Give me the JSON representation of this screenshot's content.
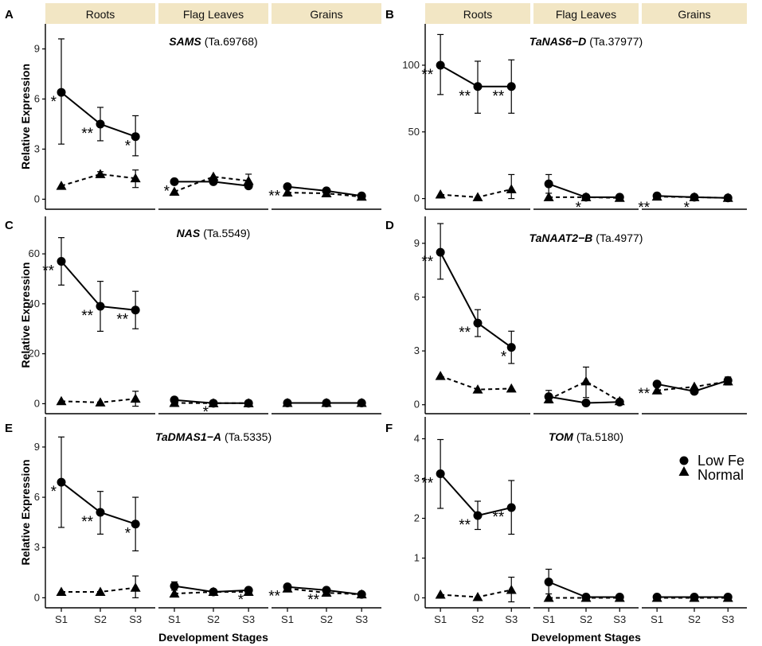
{
  "figure": {
    "strips": [
      "Roots",
      "Flag Leaves",
      "Grains"
    ],
    "stages": [
      "S1",
      "S2",
      "S3"
    ],
    "x_axis_title": "Development Stages",
    "y_axis_title": "Relative Expression",
    "legend": {
      "low_fe": "Low Fe",
      "normal": "Normal"
    },
    "colors": {
      "strip_fill": "#f2e6c4",
      "line": "#000000",
      "background": "#ffffff"
    }
  },
  "chart_data": [
    {
      "letter": "A",
      "type": "line",
      "title_gene": "SAMS",
      "title_id": "(Ta.69768)",
      "ylim": [
        -0.6,
        10.5
      ],
      "yticks": [
        0,
        3,
        6,
        9
      ],
      "facets": [
        {
          "facet": "Roots",
          "low_fe": {
            "values": [
              6.4,
              4.5,
              3.75
            ],
            "err_low": [
              3.3,
              3.5,
              2.6
            ],
            "err_high": [
              9.6,
              5.5,
              5.0
            ]
          },
          "normal": {
            "values": [
              0.8,
              1.5,
              1.25
            ],
            "err_low": [
              0.8,
              1.35,
              0.7
            ],
            "err_high": [
              0.8,
              1.65,
              1.75
            ]
          },
          "stars": [
            "*",
            "**",
            "*"
          ]
        },
        {
          "facet": "Flag Leaves",
          "low_fe": {
            "values": [
              1.05,
              1.05,
              0.8
            ],
            "err_low": [
              1.05,
              1.05,
              0.8
            ],
            "err_high": [
              1.05,
              1.05,
              0.8
            ]
          },
          "normal": {
            "values": [
              0.45,
              1.35,
              1.1
            ],
            "err_low": [
              0.45,
              1.35,
              0.7
            ],
            "err_high": [
              0.45,
              1.35,
              1.5
            ]
          },
          "stars": [
            "*",
            "",
            ""
          ]
        },
        {
          "facet": "Grains",
          "low_fe": {
            "values": [
              0.75,
              0.5,
              0.2
            ],
            "err_low": [
              0.75,
              0.5,
              0.2
            ],
            "err_high": [
              0.75,
              0.5,
              0.2
            ]
          },
          "normal": {
            "values": [
              0.4,
              0.35,
              0.15
            ],
            "err_low": [
              0.4,
              0.35,
              0.15
            ],
            "err_high": [
              0.4,
              0.35,
              0.15
            ]
          },
          "stars": [
            "**",
            "",
            ""
          ]
        }
      ]
    },
    {
      "letter": "B",
      "type": "line",
      "title_gene": "TaNAS6−D",
      "title_id": "(Ta.37977)",
      "ylim": [
        -8,
        131
      ],
      "yticks": [
        0,
        50,
        100
      ],
      "facets": [
        {
          "facet": "Roots",
          "low_fe": {
            "values": [
              100,
              84,
              84
            ],
            "err_low": [
              78,
              64,
              64
            ],
            "err_high": [
              123,
              103,
              104
            ]
          },
          "normal": {
            "values": [
              3,
              1,
              7
            ],
            "err_low": [
              3,
              1,
              0
            ],
            "err_high": [
              3,
              1,
              18
            ]
          },
          "stars": [
            "**",
            "**",
            "**"
          ]
        },
        {
          "facet": "Flag Leaves",
          "low_fe": {
            "values": [
              11,
              1,
              1
            ],
            "err_low": [
              4,
              1,
              1
            ],
            "err_high": [
              18,
              1,
              1
            ]
          },
          "normal": {
            "values": [
              1,
              1,
              0.5
            ],
            "err_low": [
              1,
              1,
              0.5
            ],
            "err_high": [
              1,
              1,
              0.5
            ]
          },
          "stars": [
            "",
            "*",
            ""
          ]
        },
        {
          "facet": "Grains",
          "low_fe": {
            "values": [
              2,
              1,
              0.5
            ],
            "err_low": [
              2,
              1,
              0.5
            ],
            "err_high": [
              2,
              1,
              0.5
            ]
          },
          "normal": {
            "values": [
              1.5,
              1,
              0.5
            ],
            "err_low": [
              1.5,
              1,
              0.5
            ],
            "err_high": [
              1.5,
              1,
              0.5
            ]
          },
          "stars": [
            "**",
            "*",
            ""
          ]
        }
      ]
    },
    {
      "letter": "C",
      "type": "line",
      "title_gene": "NAS",
      "title_id": "(Ta.5549)",
      "ylim": [
        -4,
        75
      ],
      "yticks": [
        0,
        20,
        40,
        60
      ],
      "facets": [
        {
          "facet": "Roots",
          "low_fe": {
            "values": [
              57,
              39,
              37.5
            ],
            "err_low": [
              47.5,
              29,
              30
            ],
            "err_high": [
              66.5,
              49,
              45
            ]
          },
          "normal": {
            "values": [
              1,
              0.5,
              2
            ],
            "err_low": [
              1,
              0.5,
              -1
            ],
            "err_high": [
              1,
              0.5,
              5
            ]
          },
          "stars": [
            "**",
            "**",
            "**"
          ]
        },
        {
          "facet": "Flag Leaves",
          "low_fe": {
            "values": [
              1.5,
              0.2,
              0.2
            ],
            "err_low": [
              1.5,
              0.2,
              0.2
            ],
            "err_high": [
              1.5,
              0.2,
              0.2
            ]
          },
          "normal": {
            "values": [
              0.3,
              0.2,
              0.2
            ],
            "err_low": [
              0.3,
              0.2,
              0.2
            ],
            "err_high": [
              0.3,
              0.2,
              0.2
            ]
          },
          "stars": [
            "",
            "*",
            ""
          ]
        },
        {
          "facet": "Grains",
          "low_fe": {
            "values": [
              0.3,
              0.3,
              0.3
            ],
            "err_low": [
              0.3,
              0.3,
              0.3
            ],
            "err_high": [
              0.3,
              0.3,
              0.3
            ]
          },
          "normal": {
            "values": [
              0.3,
              0.3,
              0.3
            ],
            "err_low": [
              0.3,
              0.3,
              0.3
            ],
            "err_high": [
              0.3,
              0.3,
              0.3
            ]
          },
          "stars": [
            "",
            "",
            ""
          ]
        }
      ]
    },
    {
      "letter": "D",
      "type": "line",
      "title_gene": "TaNAAT2−B",
      "title_id": "(Ta.4977)",
      "ylim": [
        -0.5,
        10.5
      ],
      "yticks": [
        0,
        3,
        6,
        9
      ],
      "facets": [
        {
          "facet": "Roots",
          "low_fe": {
            "values": [
              8.5,
              4.55,
              3.2
            ],
            "err_low": [
              7.0,
              3.8,
              2.3
            ],
            "err_high": [
              10.1,
              5.3,
              4.1
            ]
          },
          "normal": {
            "values": [
              1.6,
              0.85,
              0.9
            ],
            "err_low": [
              1.6,
              0.85,
              0.9
            ],
            "err_high": [
              1.6,
              0.85,
              0.9
            ]
          },
          "stars": [
            "**",
            "**",
            "*"
          ]
        },
        {
          "facet": "Flag Leaves",
          "low_fe": {
            "values": [
              0.45,
              0.1,
              0.15
            ],
            "err_low": [
              0.1,
              0.1,
              0.15
            ],
            "err_high": [
              0.8,
              0.1,
              0.15
            ]
          },
          "normal": {
            "values": [
              0.3,
              1.3,
              0.2
            ],
            "err_low": [
              0.3,
              0.4,
              0.2
            ],
            "err_high": [
              0.3,
              2.1,
              0.2
            ]
          },
          "stars": [
            "",
            "",
            ""
          ]
        },
        {
          "facet": "Grains",
          "low_fe": {
            "values": [
              1.15,
              0.75,
              1.35
            ],
            "err_low": [
              1.15,
              0.75,
              1.15
            ],
            "err_high": [
              1.15,
              0.75,
              1.55
            ]
          },
          "normal": {
            "values": [
              0.8,
              1.0,
              1.3
            ],
            "err_low": [
              0.8,
              1.0,
              1.1
            ],
            "err_high": [
              0.8,
              1.0,
              1.5
            ]
          },
          "stars": [
            "**",
            "",
            ""
          ]
        }
      ]
    },
    {
      "letter": "E",
      "type": "line",
      "title_gene": "TaDMAS1−A",
      "title_id": "(Ta.5335)",
      "ylim": [
        -0.6,
        10.8
      ],
      "yticks": [
        0,
        3,
        6,
        9
      ],
      "facets": [
        {
          "facet": "Roots",
          "low_fe": {
            "values": [
              6.9,
              5.1,
              4.4
            ],
            "err_low": [
              4.2,
              3.8,
              2.8
            ],
            "err_high": [
              9.6,
              6.35,
              6.0
            ]
          },
          "normal": {
            "values": [
              0.35,
              0.35,
              0.6
            ],
            "err_low": [
              0.35,
              0.35,
              0.0
            ],
            "err_high": [
              0.35,
              0.35,
              1.3
            ]
          },
          "stars": [
            "*",
            "**",
            "*"
          ]
        },
        {
          "facet": "Flag Leaves",
          "low_fe": {
            "values": [
              0.7,
              0.35,
              0.45
            ],
            "err_low": [
              0.45,
              0.35,
              0.45
            ],
            "err_high": [
              0.95,
              0.35,
              0.45
            ]
          },
          "normal": {
            "values": [
              0.25,
              0.35,
              0.35
            ],
            "err_low": [
              0.25,
              0.35,
              0.35
            ],
            "err_high": [
              0.25,
              0.35,
              0.35
            ]
          },
          "stars": [
            "",
            "",
            "*"
          ]
        },
        {
          "facet": "Grains",
          "low_fe": {
            "values": [
              0.65,
              0.45,
              0.2
            ],
            "err_low": [
              0.65,
              0.45,
              0.2
            ],
            "err_high": [
              0.65,
              0.45,
              0.2
            ]
          },
          "normal": {
            "values": [
              0.55,
              0.3,
              0.2
            ],
            "err_low": [
              0.55,
              0.3,
              0.2
            ],
            "err_high": [
              0.55,
              0.3,
              0.2
            ]
          },
          "stars": [
            "**",
            "**",
            ""
          ]
        }
      ]
    },
    {
      "letter": "F",
      "type": "line",
      "title_gene": "TOM",
      "title_id": "(Ta.5180)",
      "ylim": [
        -0.25,
        4.55
      ],
      "yticks": [
        0,
        1,
        2,
        3,
        4
      ],
      "facets": [
        {
          "facet": "Roots",
          "low_fe": {
            "values": [
              3.12,
              2.07,
              2.27
            ],
            "err_low": [
              2.25,
              1.72,
              1.6
            ],
            "err_high": [
              3.98,
              2.43,
              2.95
            ]
          },
          "normal": {
            "values": [
              0.08,
              0.02,
              0.2
            ],
            "err_low": [
              0.08,
              0.02,
              -0.1
            ],
            "err_high": [
              0.08,
              0.02,
              0.52
            ]
          },
          "stars": [
            "**",
            "**",
            "**"
          ]
        },
        {
          "facet": "Flag Leaves",
          "low_fe": {
            "values": [
              0.4,
              0.02,
              0.02
            ],
            "err_low": [
              0.1,
              0.02,
              0.02
            ],
            "err_high": [
              0.72,
              0.02,
              0.02
            ]
          },
          "normal": {
            "values": [
              0.0,
              0.0,
              0.0
            ],
            "err_low": [
              0.0,
              0.0,
              0.0
            ],
            "err_high": [
              0.0,
              0.0,
              0.0
            ]
          },
          "stars": [
            "",
            "",
            ""
          ]
        },
        {
          "facet": "Grains",
          "low_fe": {
            "values": [
              0.02,
              0.02,
              0.02
            ],
            "err_low": [
              0.02,
              0.02,
              0.02
            ],
            "err_high": [
              0.02,
              0.02,
              0.02
            ]
          },
          "normal": {
            "values": [
              0.0,
              0.0,
              0.0
            ],
            "err_low": [
              0.0,
              0.0,
              0.0
            ],
            "err_high": [
              0.0,
              0.0,
              0.0
            ]
          },
          "stars": [
            "",
            "",
            ""
          ]
        }
      ]
    }
  ]
}
